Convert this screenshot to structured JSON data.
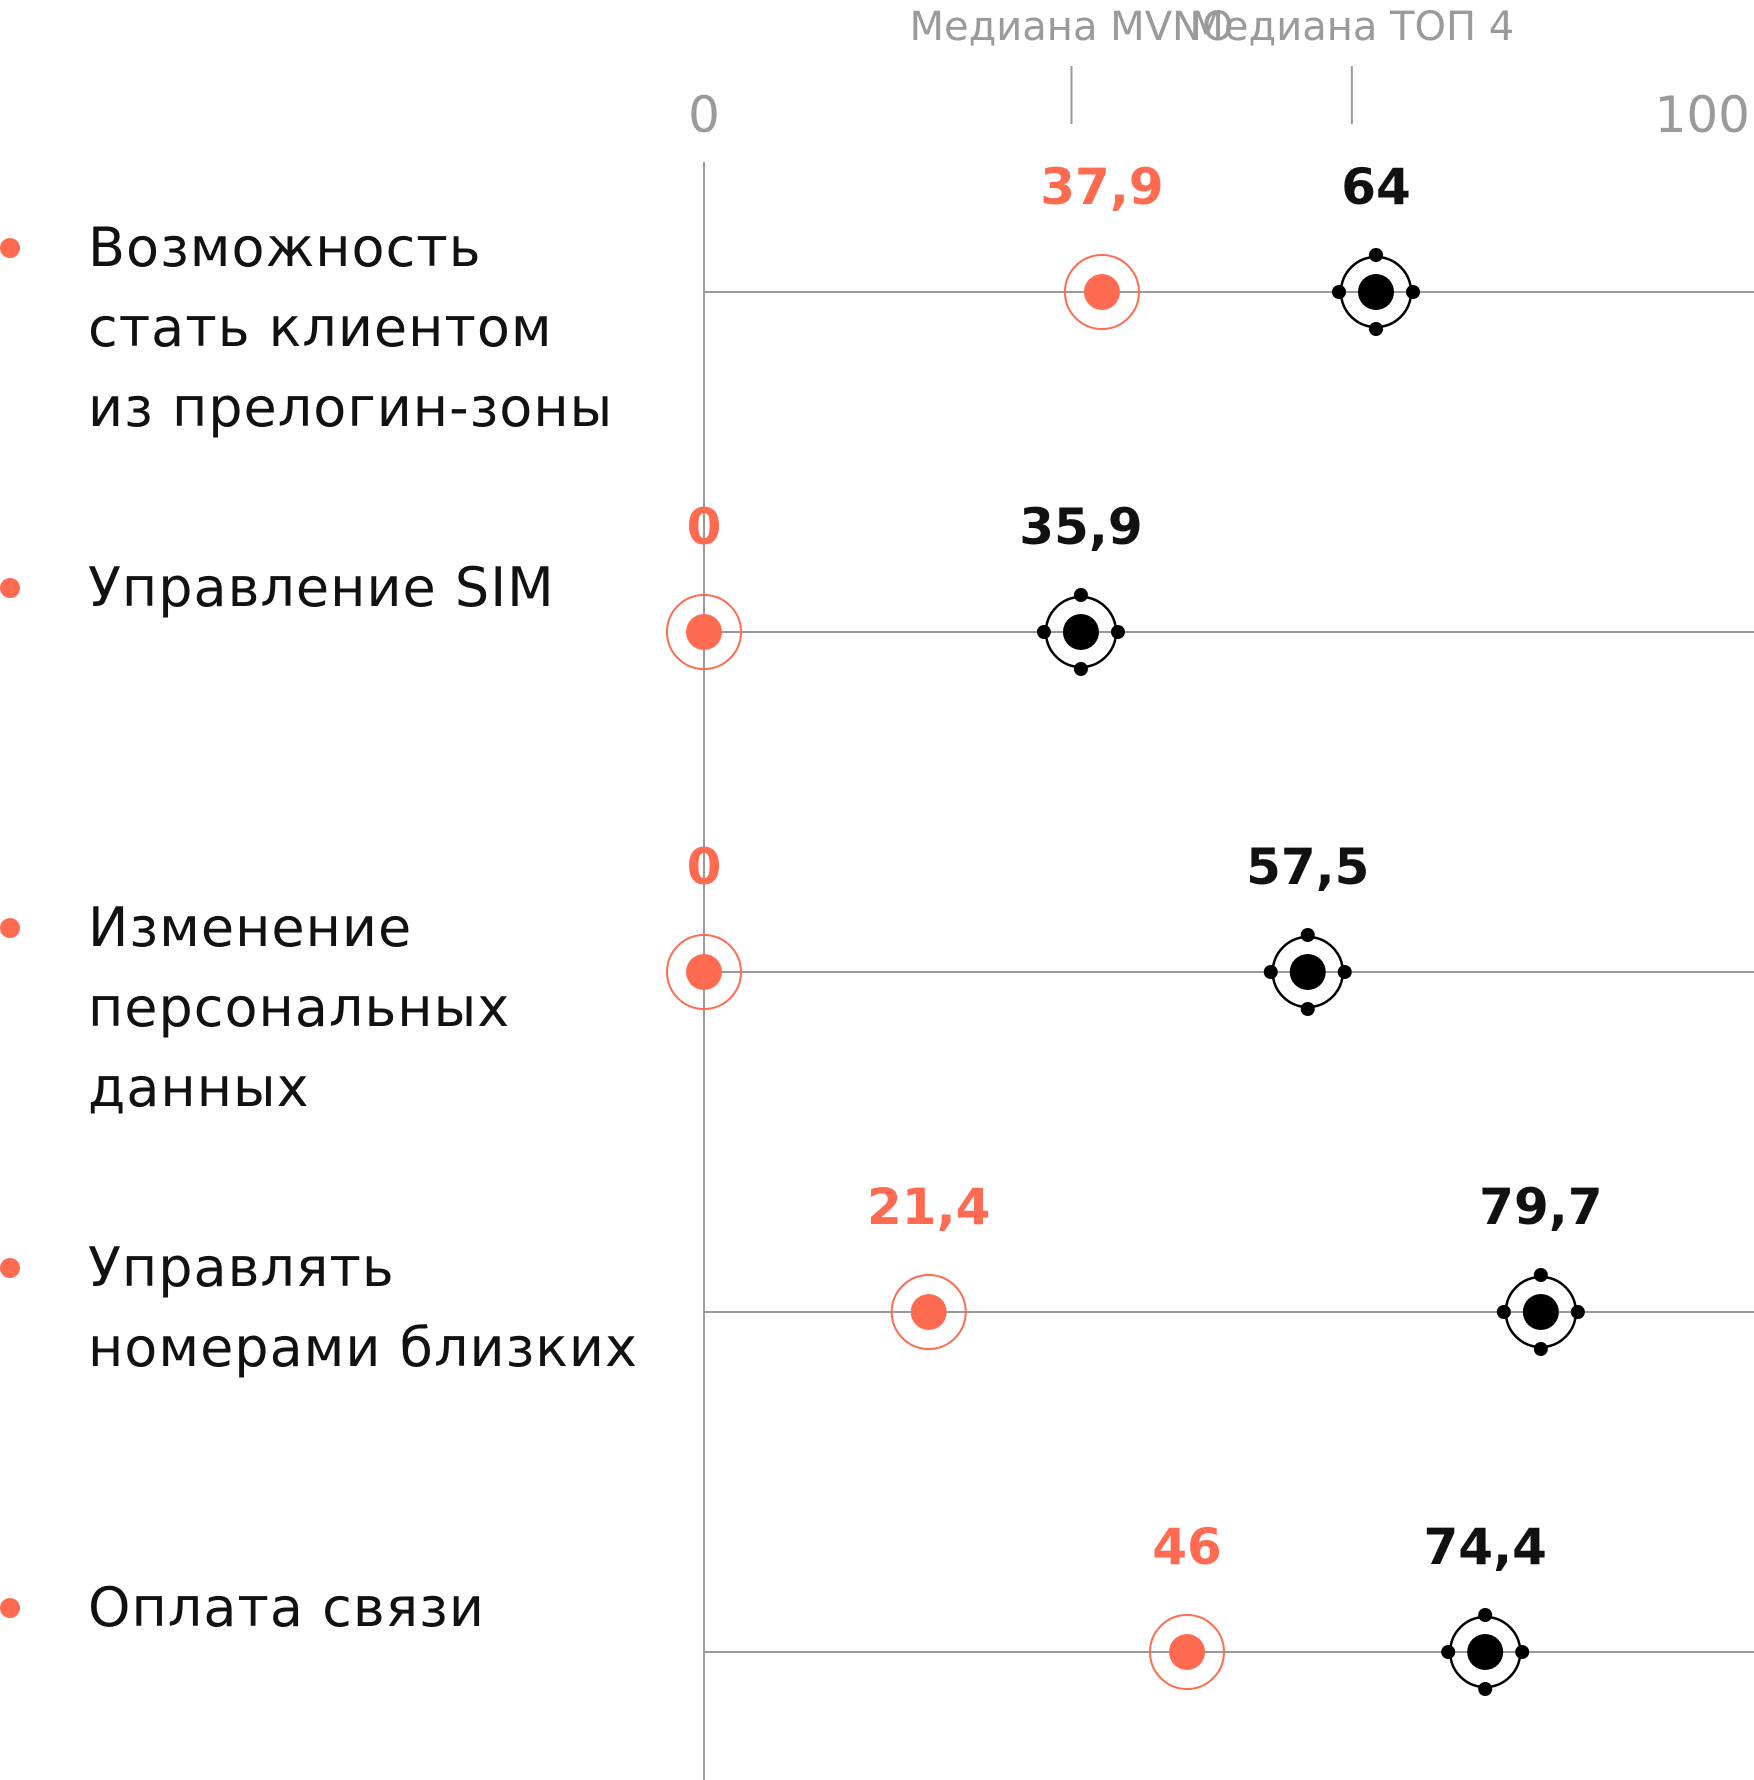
{
  "colors": {
    "mvno": "#ff6b50",
    "top4": "#000000",
    "grid": "#9a9a9a",
    "text": "#111111"
  },
  "chart_data": {
    "type": "dot",
    "xlim": [
      0,
      100
    ],
    "x_ticks": [
      "0",
      "100"
    ],
    "medians": [
      {
        "label": "Медиана MVNO",
        "value": 35
      },
      {
        "label": "Медиана ТОП 4",
        "value": 61.7
      }
    ],
    "categories": [
      {
        "lines": [
          "Возможность",
          "стать клиентом",
          "из прелогин-зоны"
        ],
        "mvno": 37.9,
        "mvno_label": "37,9",
        "top4": 64,
        "top4_label": "64"
      },
      {
        "lines": [
          "Управление SIM"
        ],
        "mvno": 0,
        "mvno_label": "0",
        "top4": 35.9,
        "top4_label": "35,9"
      },
      {
        "lines": [
          "Изменение",
          "персональных",
          "данных"
        ],
        "mvno": 0,
        "mvno_label": "0",
        "top4": 57.5,
        "top4_label": "57,5"
      },
      {
        "lines": [
          "Управлять",
          "номерами близких"
        ],
        "mvno": 21.4,
        "mvno_label": "21,4",
        "top4": 79.7,
        "top4_label": "79,7"
      },
      {
        "lines": [
          "Оплата связи"
        ],
        "mvno": 46,
        "mvno_label": "46",
        "top4": 74.4,
        "top4_label": "74,4"
      }
    ]
  }
}
